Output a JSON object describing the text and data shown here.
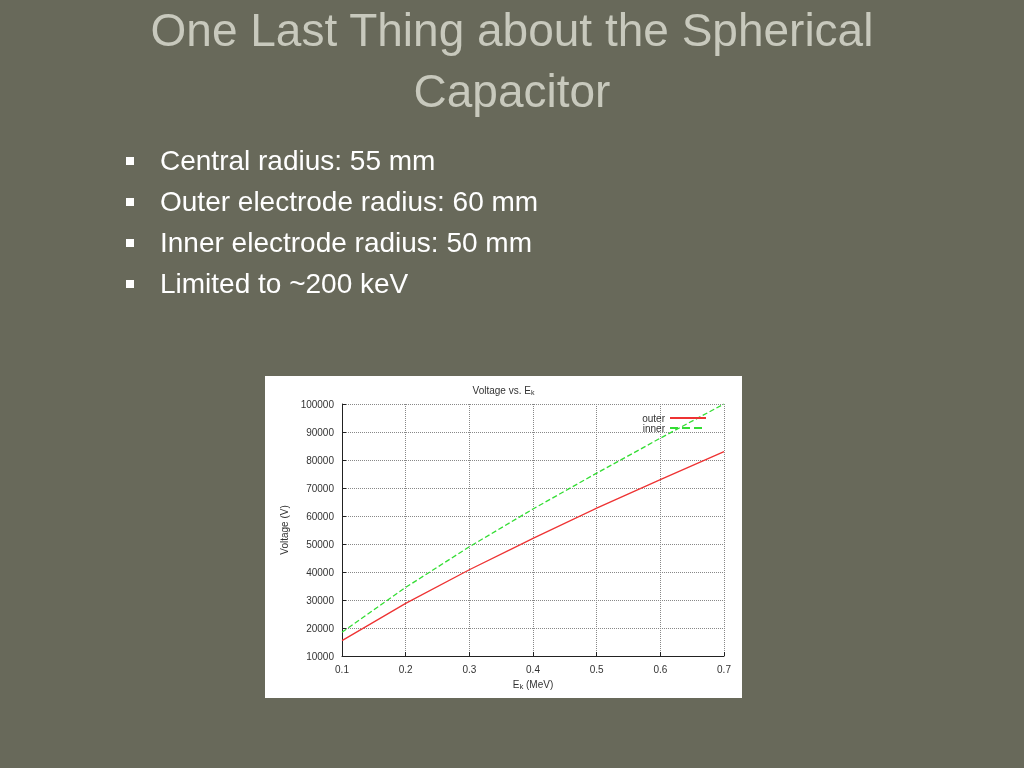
{
  "chart_data": {
    "type": "line",
    "title": "One Last Thing about the Spherical Capacitor",
    "subtitle": "Voltage vs. E$_{k}$",
    "annotations": [
      "Central radius: 55 mm",
      "Outer electrode radius: 60 mm",
      "Inner electrode radius: 50 mm",
      "Limited to ~200 keV"
    ],
    "xlabel": "E$_{k}$ (MeV)",
    "ylabel": "Voltage (V)",
    "x": [
      0.1,
      0.2,
      0.3,
      0.4,
      0.5,
      0.6,
      0.7
    ],
    "series": [
      {
        "name": "outer",
        "color": "#ee3333",
        "line_style": "solid",
        "values": [
          15500,
          28800,
          40800,
          52000,
          62800,
          73000,
          83000
        ]
      },
      {
        "name": "inner",
        "color": "#33dd33",
        "line_style": "dashed",
        "values": [
          18500,
          34500,
          49000,
          62500,
          75300,
          87800,
          100000
        ]
      }
    ],
    "xlim": [
      0.1,
      0.7
    ],
    "xticks": [
      0.1,
      0.2,
      0.3,
      0.4,
      0.5,
      0.6,
      0.7
    ],
    "ylim": [
      10000,
      100000
    ],
    "yticks": [
      10000,
      20000,
      30000,
      40000,
      50000,
      60000,
      70000,
      80000,
      90000,
      100000
    ],
    "grid": true,
    "legend": "top right",
    "marker": "none"
  }
}
